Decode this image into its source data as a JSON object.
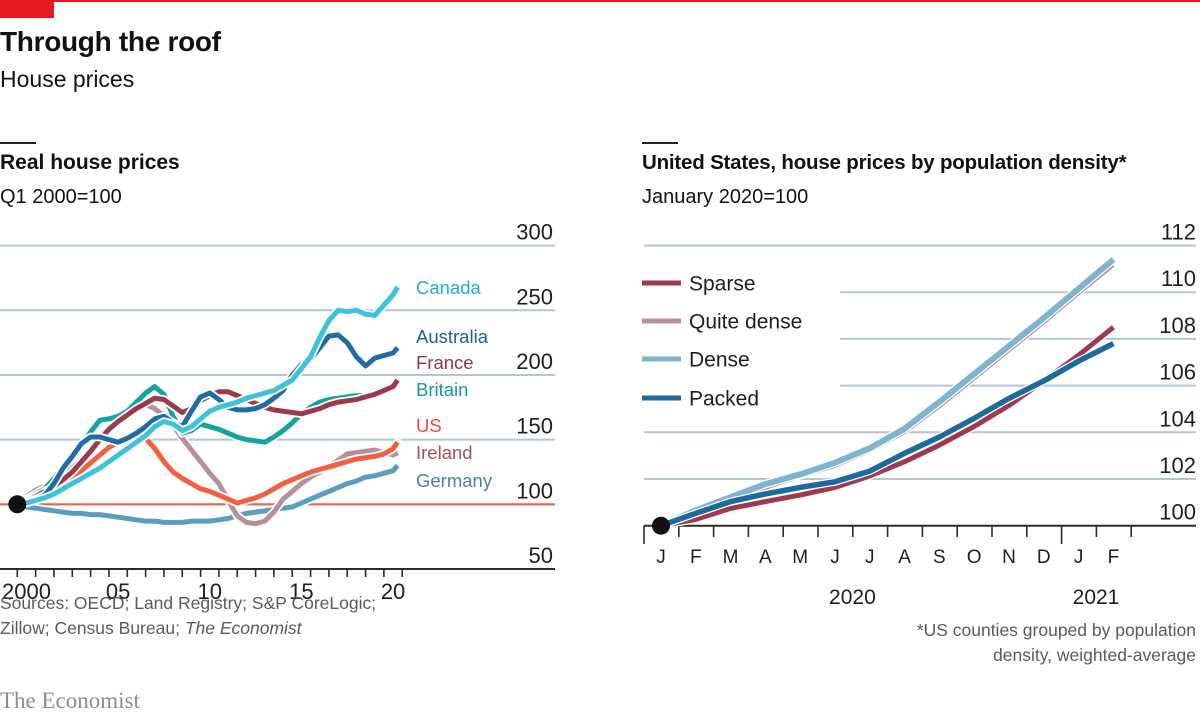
{
  "header": {
    "title": "Through the roof",
    "subtitle": "House prices"
  },
  "chart_data": [
    {
      "type": "line",
      "title": "Real house prices",
      "subtitle": "Q1 2000=100",
      "xlabel": "",
      "ylabel": "",
      "x": [
        2000,
        2000.5,
        2001,
        2001.5,
        2002,
        2002.5,
        2003,
        2003.5,
        2004,
        2004.5,
        2005,
        2005.5,
        2006,
        2006.5,
        2007,
        2007.5,
        2008,
        2008.5,
        2009,
        2009.5,
        2010,
        2010.5,
        2011,
        2011.5,
        2012,
        2012.5,
        2013,
        2013.5,
        2014,
        2014.5,
        2015,
        2015.5,
        2016,
        2016.5,
        2017,
        2017.5,
        2018,
        2018.5,
        2019,
        2019.5,
        2020,
        2020.5,
        2020.75
      ],
      "xlim": [
        2000,
        2021
      ],
      "x_tick_labels": [
        {
          "value": 2000,
          "label": "2000"
        },
        {
          "value": 2005,
          "label": "05"
        },
        {
          "value": 2010,
          "label": "10"
        },
        {
          "value": 2015,
          "label": "15"
        },
        {
          "value": 2020,
          "label": "20"
        }
      ],
      "ylim": [
        50,
        300
      ],
      "yticks": [
        50,
        100,
        150,
        200,
        250,
        300
      ],
      "baseline": 100,
      "baseline_color": "#f0604a",
      "grid": true,
      "legend": "direct labels, right",
      "start_marker": {
        "x": 2000,
        "y": 100
      },
      "series": [
        {
          "name": "Canada",
          "color": "#3cc2da",
          "label_color": "#1fb2c8",
          "values": [
            100,
            101,
            103,
            105,
            108,
            112,
            116,
            120,
            124,
            128,
            133,
            138,
            143,
            148,
            153,
            160,
            164,
            162,
            157,
            160,
            166,
            172,
            175,
            177,
            179,
            182,
            184,
            186,
            188,
            192,
            196,
            205,
            214,
            229,
            242,
            250,
            249,
            250,
            247,
            246,
            254,
            262,
            268
          ]
        },
        {
          "name": "Australia",
          "color": "#1f6da3",
          "label_color": "#1b5e93",
          "values": [
            100,
            102,
            104,
            107,
            116,
            128,
            137,
            147,
            152,
            152,
            150,
            148,
            151,
            155,
            160,
            166,
            168,
            163,
            160,
            172,
            183,
            186,
            181,
            175,
            173,
            173,
            174,
            177,
            182,
            188,
            200,
            208,
            212,
            221,
            230,
            231,
            225,
            214,
            207,
            213,
            215,
            217,
            221
          ]
        },
        {
          "name": "France",
          "color": "#9a3a4c",
          "label_color": "#9a3448",
          "values": [
            100,
            103,
            106,
            110,
            114,
            119,
            125,
            133,
            141,
            150,
            158,
            164,
            169,
            174,
            178,
            182,
            181,
            176,
            171,
            174,
            180,
            184,
            187,
            187,
            184,
            181,
            178,
            175,
            173,
            172,
            171,
            170,
            172,
            174,
            177,
            179,
            180,
            181,
            183,
            185,
            188,
            191,
            196
          ]
        },
        {
          "name": "Britain",
          "color": "#17a2a2",
          "label_color": "#139a9d",
          "values": [
            100,
            104,
            108,
            112,
            120,
            129,
            137,
            145,
            156,
            165,
            166,
            168,
            172,
            179,
            186,
            191,
            185,
            168,
            155,
            157,
            162,
            160,
            158,
            155,
            152,
            150,
            149,
            148,
            152,
            157,
            163,
            170,
            175,
            179,
            181,
            182,
            183,
            184,
            184,
            185,
            187,
            190,
            195
          ]
        },
        {
          "name": "US",
          "color": "#f2603f",
          "label_color": "#f04e33",
          "values": [
            100,
            102,
            105,
            108,
            112,
            116,
            120,
            126,
            132,
            138,
            144,
            148,
            152,
            153,
            151,
            143,
            133,
            125,
            120,
            116,
            112,
            110,
            107,
            104,
            101,
            103,
            105,
            108,
            112,
            116,
            119,
            122,
            125,
            127,
            129,
            131,
            133,
            135,
            136,
            137,
            139,
            143,
            148
          ]
        },
        {
          "name": "Ireland",
          "color": "#b59099",
          "label_color": "#a6505f",
          "values": [
            100,
            106,
            111,
            114,
            117,
            122,
            128,
            135,
            143,
            150,
            156,
            163,
            170,
            175,
            177,
            174,
            168,
            161,
            151,
            142,
            133,
            124,
            116,
            103,
            91,
            86,
            85,
            87,
            94,
            104,
            110,
            116,
            121,
            125,
            129,
            134,
            139,
            140,
            141,
            142,
            140,
            138,
            140
          ]
        },
        {
          "name": "Germany",
          "color": "#5b9dbd",
          "label_color": "#4f7fa0",
          "values": [
            100,
            98,
            97,
            96,
            95,
            94,
            93,
            93,
            92,
            92,
            91,
            90,
            89,
            88,
            87,
            87,
            86,
            86,
            86,
            87,
            87,
            87,
            88,
            89,
            91,
            93,
            94,
            95,
            96,
            97,
            98,
            101,
            104,
            107,
            110,
            113,
            116,
            118,
            121,
            122,
            124,
            126,
            130
          ]
        }
      ]
    },
    {
      "type": "line",
      "title": "United States, house prices by population density*",
      "subtitle": "January 2020=100",
      "xlabel": "",
      "ylabel": "",
      "x": [
        "2020-01",
        "2020-02",
        "2020-03",
        "2020-04",
        "2020-05",
        "2020-06",
        "2020-07",
        "2020-08",
        "2020-09",
        "2020-10",
        "2020-11",
        "2020-12",
        "2021-01",
        "2021-02"
      ],
      "x_tick_labels": [
        "J",
        "F",
        "M",
        "A",
        "M",
        "J",
        "J",
        "A",
        "S",
        "O",
        "N",
        "D",
        "J",
        "F"
      ],
      "year_labels": [
        {
          "label": "2020",
          "month_index": 5.5
        },
        {
          "label": "2021",
          "month_index": 12.5
        }
      ],
      "ylim": [
        100,
        112
      ],
      "yticks": [
        100,
        102,
        104,
        106,
        108,
        110,
        112
      ],
      "grid": true,
      "legend": "top-left",
      "start_marker": {
        "x": "2020-01",
        "y": 100
      },
      "series": [
        {
          "name": "Sparse",
          "color": "#9d3a4f",
          "values": [
            100,
            100.27,
            100.74,
            101.03,
            101.31,
            101.64,
            102.13,
            102.74,
            103.45,
            104.25,
            105.15,
            106.2,
            107.3,
            108.5
          ]
        },
        {
          "name": "Quite dense",
          "color": "#b8909c",
          "values": [
            100,
            100.6,
            101.15,
            101.62,
            102.1,
            102.55,
            103.2,
            104.0,
            105.1,
            106.3,
            107.5,
            108.7,
            109.95,
            111.15
          ]
        },
        {
          "name": "Dense",
          "color": "#7db4cf",
          "values": [
            100,
            100.66,
            101.22,
            101.78,
            102.2,
            102.7,
            103.32,
            104.16,
            105.3,
            106.5,
            107.7,
            108.9,
            110.15,
            111.4
          ]
        },
        {
          "name": "Packed",
          "color": "#1d6aa0",
          "values": [
            100,
            100.53,
            101.03,
            101.36,
            101.64,
            101.88,
            102.34,
            103.1,
            103.8,
            104.6,
            105.45,
            106.2,
            107.05,
            107.8
          ]
        }
      ]
    }
  ],
  "footer": {
    "sources_line1": "Sources: OECD; Land Registry; S&P CoreLogic;",
    "sources_line2": "Zillow; Census Bureau; ",
    "sources_line2_italic": "The Economist",
    "footnote_line1": "*US counties grouped by population",
    "footnote_line2": "density, weighted-average",
    "brand": "The Economist"
  }
}
